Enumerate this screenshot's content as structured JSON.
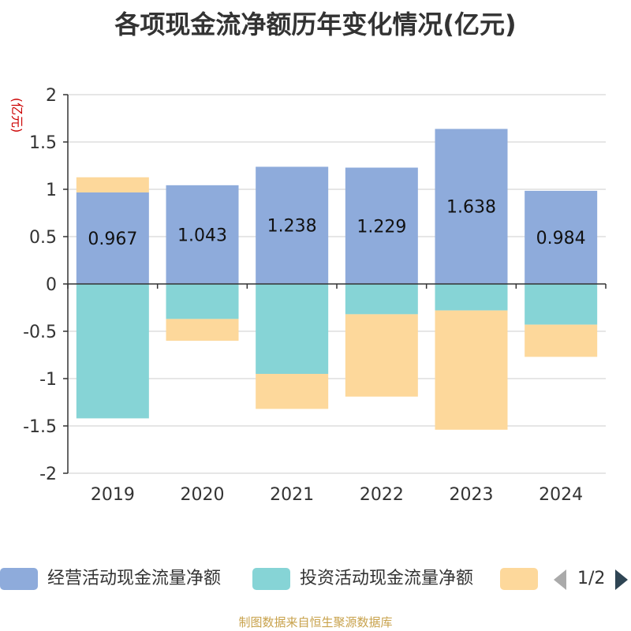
{
  "title": "各项现金流净额历年变化情况(亿元)",
  "footer": "制图数据来自恒生聚源数据库",
  "legend": {
    "items": [
      {
        "label": "经营活动现金流量净额",
        "color": "#8eabdb"
      },
      {
        "label": "投资活动现金流量净额",
        "color": "#86d4d6"
      },
      {
        "label": "",
        "color": "#fdd89b"
      }
    ],
    "page": "1/2"
  },
  "chart_data": {
    "type": "bar",
    "stacked": true,
    "categories": [
      "2019",
      "2020",
      "2021",
      "2022",
      "2023",
      "2024"
    ],
    "ylabel": "(亿元)",
    "ylim": [
      -2,
      2
    ],
    "yticks": [
      -2,
      -1.5,
      -1,
      -0.5,
      0,
      0.5,
      1,
      1.5,
      2
    ],
    "grid": true,
    "legend_position": "bottom",
    "series": [
      {
        "name": "经营活动现金流量净额",
        "color": "#8eabdb",
        "values": [
          0.967,
          1.043,
          1.238,
          1.229,
          1.638,
          0.984
        ],
        "labels": [
          "0.967",
          "1.043",
          "1.238",
          "1.229",
          "1.638",
          "0.984"
        ]
      },
      {
        "name": "投资活动现金流量净额",
        "color": "#86d4d6",
        "values": [
          -1.42,
          -0.37,
          -0.95,
          -0.32,
          -0.28,
          -0.43
        ]
      },
      {
        "color": "#fdd89b",
        "values": [
          0.16,
          -0.23,
          -0.37,
          -0.87,
          -1.26,
          -0.34
        ]
      }
    ]
  }
}
